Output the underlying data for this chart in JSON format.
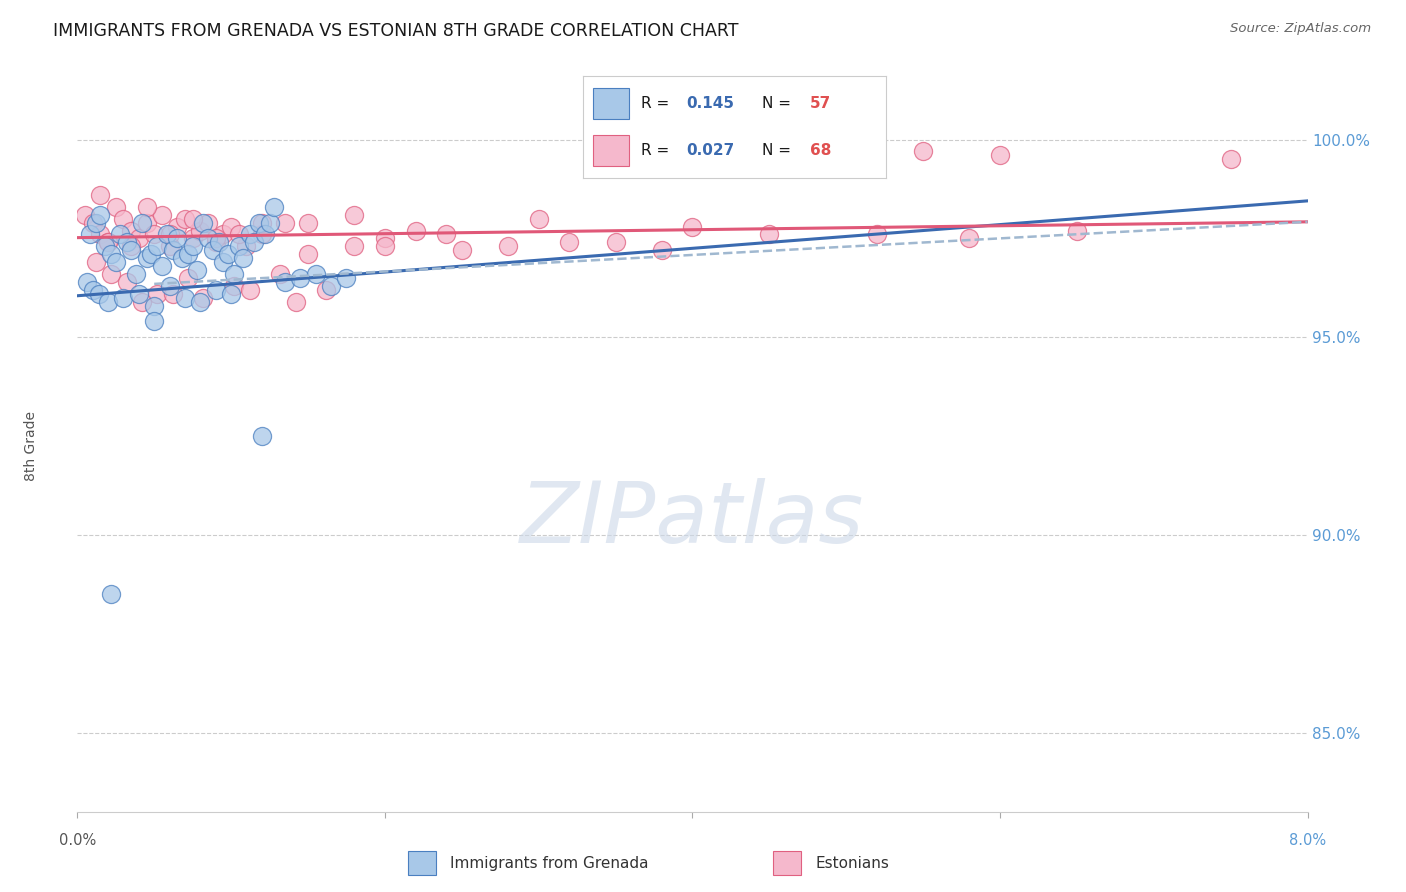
{
  "title": "IMMIGRANTS FROM GRENADA VS ESTONIAN 8TH GRADE CORRELATION CHART",
  "source": "Source: ZipAtlas.com",
  "ylabel": "8th Grade",
  "xlim": [
    0.0,
    8.0
  ],
  "ylim": [
    83.0,
    101.5
  ],
  "yticks": [
    85.0,
    90.0,
    95.0,
    100.0
  ],
  "ytick_labels": [
    "85.0%",
    "90.0%",
    "95.0%",
    "100.0%"
  ],
  "legend_r_blue": "0.145",
  "legend_n_blue": "57",
  "legend_r_pink": "0.027",
  "legend_n_pink": "68",
  "blue_fill": "#a8c8e8",
  "pink_fill": "#f5b8cc",
  "blue_edge": "#4a7fc0",
  "pink_edge": "#e06080",
  "blue_line": "#3a6ab0",
  "pink_line": "#e05878",
  "dash_line": "#a0b8d0",
  "watermark_color": "#ccd8e8",
  "blue_scatter_x": [
    0.08,
    0.12,
    0.15,
    0.18,
    0.22,
    0.25,
    0.28,
    0.32,
    0.35,
    0.38,
    0.42,
    0.45,
    0.48,
    0.52,
    0.55,
    0.58,
    0.62,
    0.65,
    0.68,
    0.72,
    0.75,
    0.78,
    0.82,
    0.85,
    0.88,
    0.92,
    0.95,
    0.98,
    1.02,
    1.05,
    1.08,
    1.12,
    1.15,
    1.18,
    1.22,
    1.25,
    1.28,
    1.35,
    1.45,
    1.55,
    1.65,
    1.75,
    0.06,
    0.1,
    0.14,
    0.2,
    0.3,
    0.4,
    0.5,
    0.6,
    0.7,
    0.8,
    0.9,
    1.0,
    0.22,
    0.5,
    1.2
  ],
  "blue_scatter_y": [
    97.6,
    97.9,
    98.1,
    97.3,
    97.1,
    96.9,
    97.6,
    97.4,
    97.2,
    96.6,
    97.9,
    97.0,
    97.1,
    97.3,
    96.8,
    97.6,
    97.2,
    97.5,
    97.0,
    97.1,
    97.3,
    96.7,
    97.9,
    97.5,
    97.2,
    97.4,
    96.9,
    97.1,
    96.6,
    97.3,
    97.0,
    97.6,
    97.4,
    97.9,
    97.6,
    97.9,
    98.3,
    96.4,
    96.5,
    96.6,
    96.3,
    96.5,
    96.4,
    96.2,
    96.1,
    95.9,
    96.0,
    96.1,
    95.8,
    96.3,
    96.0,
    95.9,
    96.2,
    96.1,
    88.5,
    95.4,
    92.5
  ],
  "pink_scatter_x": [
    0.05,
    0.1,
    0.15,
    0.2,
    0.25,
    0.3,
    0.35,
    0.4,
    0.45,
    0.5,
    0.55,
    0.6,
    0.65,
    0.7,
    0.75,
    0.8,
    0.85,
    0.9,
    0.95,
    1.0,
    1.1,
    1.2,
    1.5,
    1.8,
    2.0,
    2.2,
    2.5,
    3.0,
    3.5,
    4.0,
    5.0,
    5.5,
    6.0,
    7.5,
    0.12,
    0.22,
    0.32,
    0.52,
    0.72,
    1.02,
    1.32,
    1.62,
    0.42,
    0.62,
    0.82,
    1.12,
    1.42,
    2.8,
    4.5,
    0.2,
    0.35,
    0.9,
    1.5,
    2.0,
    3.2,
    5.2,
    6.5,
    0.15,
    0.45,
    0.75,
    1.05,
    1.35,
    3.8,
    5.8,
    0.6,
    1.2,
    1.8,
    2.4
  ],
  "pink_scatter_y": [
    98.1,
    97.9,
    97.6,
    97.4,
    98.3,
    98.0,
    97.7,
    97.5,
    97.9,
    97.6,
    98.1,
    97.3,
    97.8,
    98.0,
    97.5,
    97.7,
    97.9,
    97.4,
    97.6,
    97.8,
    97.3,
    97.6,
    97.9,
    98.1,
    97.5,
    97.7,
    97.2,
    98.0,
    97.4,
    97.8,
    99.8,
    99.7,
    99.6,
    99.5,
    96.9,
    96.6,
    96.4,
    96.1,
    96.5,
    96.3,
    96.6,
    96.2,
    95.9,
    96.1,
    96.0,
    96.2,
    95.9,
    97.3,
    97.6,
    97.4,
    97.3,
    97.5,
    97.1,
    97.3,
    97.4,
    97.6,
    97.7,
    98.6,
    98.3,
    98.0,
    97.6,
    97.9,
    97.2,
    97.5,
    97.6,
    97.9,
    97.3,
    97.6
  ],
  "blue_trend": [
    0.0,
    8.0,
    96.05,
    98.45
  ],
  "pink_trend": [
    0.0,
    8.0,
    97.52,
    97.92
  ],
  "dash_trend": [
    0.5,
    8.0,
    96.35,
    97.92
  ]
}
